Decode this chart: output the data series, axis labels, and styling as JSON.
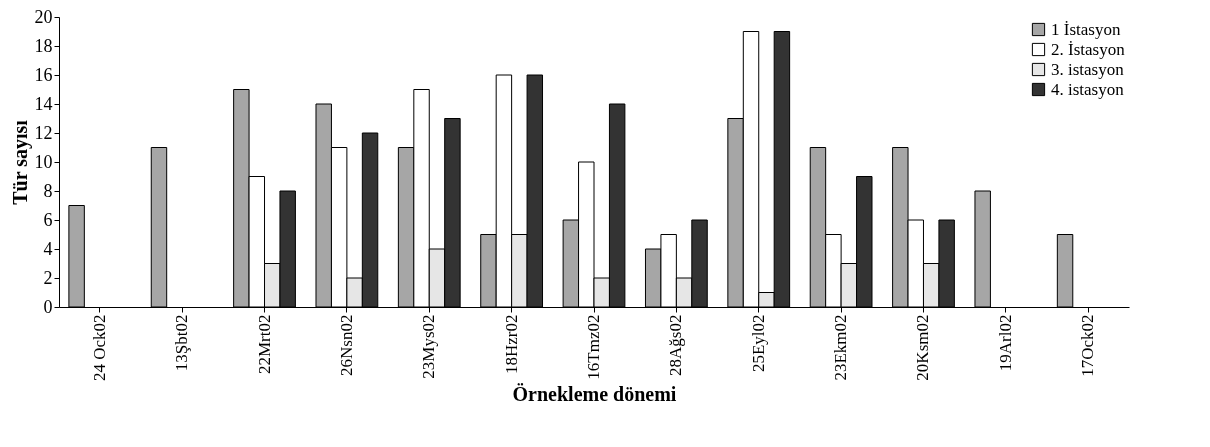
{
  "chart_data": {
    "type": "bar",
    "xlabel": "Örnekleme dönemi",
    "ylabel": "Tür sayısı",
    "categories": [
      "24 Ock02",
      "13Şbt02",
      "22Mrt02",
      "26Nsn02",
      "23Mys02",
      "18Hzr02",
      "16Tmz02",
      "28Ağs02",
      "25Eyl02",
      "23Ekm02",
      "20Ksm02",
      "19Arl02",
      "17Ock02"
    ],
    "series": [
      {
        "name": "1 İstasyon",
        "color": "#a6a6a6",
        "values": [
          7,
          11,
          15,
          14,
          11,
          5,
          6,
          4,
          13,
          11,
          11,
          8,
          5
        ]
      },
      {
        "name": "2. İstasyon",
        "color": "#ffffff",
        "values": [
          null,
          null,
          9,
          11,
          15,
          16,
          10,
          5,
          19,
          5,
          6,
          null,
          null
        ]
      },
      {
        "name": "3. istasyon",
        "color": "#e6e6e6",
        "values": [
          null,
          null,
          3,
          2,
          4,
          5,
          2,
          2,
          1,
          3,
          3,
          null,
          null
        ]
      },
      {
        "name": "4. istasyon",
        "color": "#333333",
        "values": [
          null,
          null,
          8,
          12,
          13,
          16,
          14,
          6,
          19,
          9,
          6,
          null,
          null
        ]
      }
    ],
    "ylim": [
      0,
      20
    ],
    "yticks": [
      0,
      2,
      4,
      6,
      8,
      10,
      12,
      14,
      16,
      18,
      20
    ],
    "grid": false,
    "legend": "top right"
  }
}
